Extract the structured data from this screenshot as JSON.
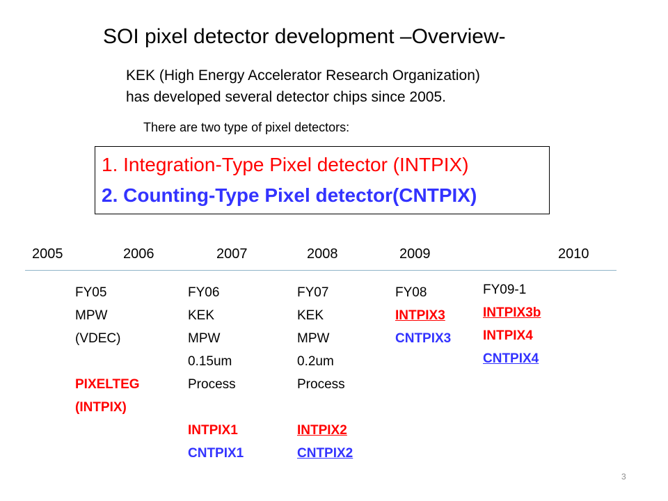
{
  "title": "SOI pixel detector development –Overview-",
  "intro_line1": "KEK (High Energy Accelerator Research Organization)",
  "intro_line2": "has developed several detector chips since 2005.",
  "types_note": "There are two type of pixel detectors:",
  "detector_types": [
    {
      "label": "1. Integration-Type  Pixel detector (INTPIX)",
      "color": "#ff0000"
    },
    {
      "label": "2. Counting-Type Pixel detector(CNTPIX)",
      "color": "#3333ff"
    }
  ],
  "timeline": {
    "years": [
      "2005",
      "2006",
      "2007",
      "2008",
      "2009",
      "2010"
    ],
    "columns": [
      {
        "lines": [
          "FY05",
          "MPW",
          "(VDEC)",
          "",
          "PIXELTEG",
          "(INTPIX)"
        ]
      },
      {
        "lines": [
          "FY06",
          "KEK",
          "MPW",
          "0.15um",
          "Process",
          "",
          "INTPIX1",
          "CNTPIX1"
        ]
      },
      {
        "lines": [
          "FY07",
          "KEK",
          "MPW",
          "0.2um",
          "Process",
          "",
          "INTPIX2",
          "CNTPIX2"
        ]
      },
      {
        "lines": [
          "FY08",
          "INTPIX3",
          "CNTPIX3"
        ]
      },
      {
        "lines": [
          "FY09-1",
          "INTPIX3b",
          "INTPIX4",
          "CNTPIX4"
        ]
      }
    ]
  },
  "page_number": "3"
}
